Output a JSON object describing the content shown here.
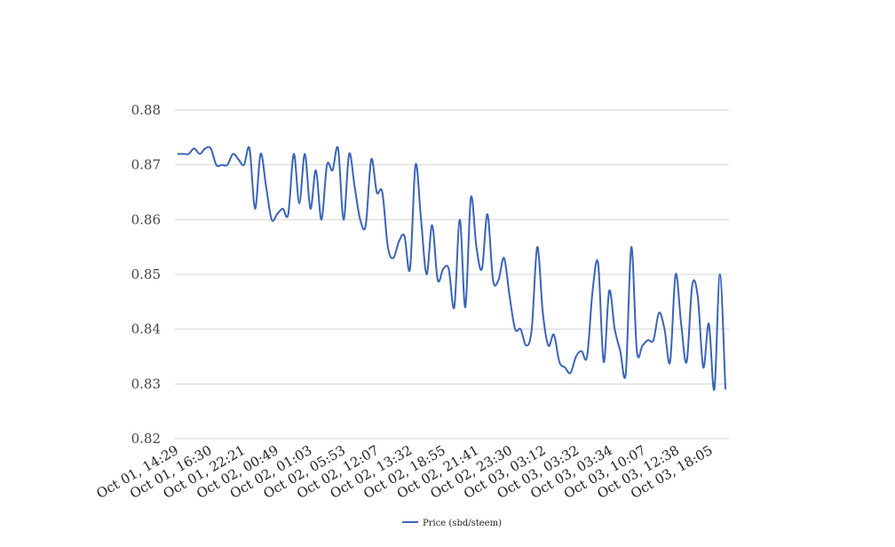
{
  "chart_data": {
    "type": "line",
    "title": "",
    "xlabel": "",
    "ylabel": "",
    "ylim": [
      0.82,
      0.88
    ],
    "yticks": [
      "0.82",
      "0.83",
      "0.84",
      "0.85",
      "0.86",
      "0.87",
      "0.88"
    ],
    "xtick_labels": [
      "Oct 01, 14:29",
      "Oct 01, 16:30",
      "Oct 01, 22:21",
      "Oct 02, 00:49",
      "Oct 02, 01:03",
      "Oct 02, 05:53",
      "Oct 02, 12:07",
      "Oct 02, 13:32",
      "Oct 02, 18:55",
      "Oct 02, 21:41",
      "Oct 02, 23:30",
      "Oct 03, 03:12",
      "Oct 03, 03:32",
      "Oct 03, 03:34",
      "Oct 03, 10:07",
      "Oct 03, 12:38",
      "Oct 03, 18:05"
    ],
    "grid": true,
    "legend_position": "bottom-center",
    "series": [
      {
        "name": "Price (sbd/steem)",
        "color": "#3a64b8",
        "values": [
          0.872,
          0.872,
          0.872,
          0.873,
          0.872,
          0.873,
          0.873,
          0.87,
          0.87,
          0.87,
          0.872,
          0.871,
          0.87,
          0.873,
          0.862,
          0.872,
          0.866,
          0.86,
          0.861,
          0.862,
          0.861,
          0.872,
          0.863,
          0.872,
          0.862,
          0.869,
          0.86,
          0.87,
          0.869,
          0.873,
          0.86,
          0.872,
          0.866,
          0.86,
          0.859,
          0.871,
          0.865,
          0.865,
          0.855,
          0.853,
          0.856,
          0.857,
          0.851,
          0.87,
          0.86,
          0.85,
          0.859,
          0.849,
          0.851,
          0.851,
          0.844,
          0.86,
          0.844,
          0.864,
          0.855,
          0.851,
          0.861,
          0.849,
          0.849,
          0.853,
          0.846,
          0.84,
          0.84,
          0.837,
          0.84,
          0.855,
          0.843,
          0.837,
          0.839,
          0.834,
          0.833,
          0.832,
          0.835,
          0.836,
          0.835,
          0.847,
          0.852,
          0.834,
          0.847,
          0.84,
          0.836,
          0.832,
          0.855,
          0.836,
          0.837,
          0.838,
          0.838,
          0.843,
          0.84,
          0.834,
          0.85,
          0.841,
          0.834,
          0.848,
          0.846,
          0.833,
          0.841,
          0.829,
          0.85,
          0.829
        ]
      }
    ]
  }
}
